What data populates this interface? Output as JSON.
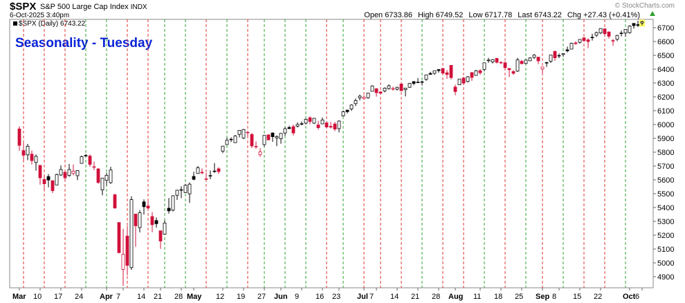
{
  "chart_data": {
    "type": "candlestick",
    "symbol": "$SPX",
    "name": "S&P 500 Large Cap Index",
    "exchange": "INDX",
    "timestamp": "6-Oct-2025 3:40pm",
    "copyright": "© StockCharts.com",
    "stats": [
      {
        "label": "Open",
        "value": 6733.86
      },
      {
        "label": "High",
        "value": 6749.52
      },
      {
        "label": "Low",
        "value": 6717.78
      },
      {
        "label": "Last",
        "value": 6743.22
      },
      {
        "label": "Chg",
        "value": "+27.43 (+0.41%)"
      }
    ],
    "legend": "$SPX (Daily) 6743.22",
    "annotation": "Seasonality - Tuesday",
    "categories": [
      "Mar",
      null,
      null,
      null,
      null,
      "10",
      null,
      null,
      null,
      null,
      "17",
      null,
      null,
      null,
      null,
      "24",
      null,
      null,
      null,
      null,
      null,
      "Apr",
      null,
      null,
      null,
      "7",
      null,
      null,
      null,
      null,
      "14",
      null,
      null,
      null,
      "21",
      null,
      null,
      null,
      null,
      "28",
      null,
      null,
      "May",
      null,
      null,
      null,
      null,
      null,
      null,
      "12",
      null,
      null,
      null,
      null,
      "19",
      null,
      null,
      null,
      null,
      "27",
      null,
      null,
      null,
      "Jun",
      null,
      null,
      null,
      null,
      "9",
      null,
      null,
      null,
      null,
      "16",
      null,
      null,
      null,
      "23",
      null,
      null,
      null,
      null,
      null,
      "Jul",
      null,
      null,
      "7",
      null,
      null,
      null,
      null,
      "14",
      null,
      null,
      null,
      null,
      "21",
      null,
      null,
      null,
      null,
      "28",
      null,
      null,
      null,
      "Aug",
      null,
      null,
      null,
      null,
      null,
      "11",
      null,
      null,
      null,
      null,
      "18",
      null,
      null,
      null,
      null,
      "25",
      null,
      null,
      null,
      null,
      "Sep",
      null,
      null,
      null,
      "8",
      null,
      null,
      null,
      null,
      "15",
      null,
      null,
      null,
      null,
      "22",
      null,
      null,
      null,
      null,
      null,
      null,
      "Oct",
      null,
      null,
      "6"
    ],
    "open": [
      5968,
      5812,
      5781,
      5786,
      5726,
      5705,
      5603,
      5624,
      5594,
      5563,
      5635,
      5655,
      5632,
      5646,
      5630,
      5719,
      5775,
      5772,
      5695,
      5679,
      5527,
      5597,
      5580,
      5492,
      5292,
      4953,
      5194,
      4966,
      5353,
      5255,
      5441,
      5411,
      5335,
      5306,
      5232,
      5207,
      5395,
      5381,
      5489,
      5529,
      5508,
      5499,
      5625,
      5646,
      5655,
      5606,
      5631,
      5663,
      5680,
      5807,
      5855,
      5894,
      5869,
      5929,
      5903,
      5944,
      5928,
      5842,
      5781,
      5855,
      5925,
      5939,
      5903,
      5897,
      5939,
      5978,
      5985,
      5988,
      6005,
      6010,
      6049,
      6010,
      5997,
      6005,
      6012,
      5987,
      6004,
      5970,
      6062,
      6104,
      6113,
      6151,
      6193,
      6187,
      6193,
      6240,
      6259,
      6235,
      6243,
      6260,
      6255,
      6255,
      6293,
      6252,
      6269,
      6310,
      6305,
      6306,
      6326,
      6369,
      6370,
      6397,
      6405,
      6374,
      6428,
      6271,
      6287,
      6336,
      6311,
      6375,
      6355,
      6389,
      6398,
      6461,
      6452,
      6478,
      6445,
      6446,
      6405,
      6383,
      6386,
      6457,
      6441,
      6461,
      6485,
      6487,
      6401,
      6447,
      6457,
      6529,
      6499,
      6506,
      6540,
      6545,
      6590,
      6594,
      6627,
      6612,
      6631,
      6645,
      6662,
      6692,
      6669,
      6607,
      6616,
      6661,
      6661,
      6664,
      6731,
      6722,
      6733.86
    ],
    "high": [
      5986,
      5865,
      5860,
      5812,
      5783,
      5705,
      5636,
      5642,
      5597,
      5645,
      5704,
      5655,
      5715,
      5711,
      5670,
      5775,
      5787,
      5783,
      5732,
      5685,
      5612,
      5651,
      5695,
      5500,
      5292,
      5246,
      5267,
      5481,
      5353,
      5381,
      5459,
      5450,
      5367,
      5328,
      5232,
      5309,
      5469,
      5489,
      5528,
      5553,
      5571,
      5581,
      5659,
      5700,
      5683,
      5650,
      5668,
      5721,
      5691,
      5845,
      5906,
      5907,
      5924,
      5958,
      5968,
      5953,
      5939,
      5878,
      5829,
      5922,
      5930,
      5943,
      5922,
      5938,
      5982,
      5991,
      5999,
      6016,
      6022,
      6043,
      6059,
      6046,
      6026,
      6051,
      6024,
      6018,
      6018,
      6030,
      6101,
      6108,
      6146,
      6188,
      6216,
      6211,
      6227,
      6284,
      6262,
      6243,
      6269,
      6290,
      6274,
      6273,
      6302,
      6266,
      6300,
      6315,
      6336,
      6316,
      6360,
      6381,
      6389,
      6401,
      6409,
      6394,
      6428,
      6288,
      6330,
      6345,
      6350,
      6380,
      6395,
      6400,
      6446,
      6481,
      6473,
      6481,
      6458,
      6456,
      6408,
      6393,
      6482,
      6467,
      6468,
      6487,
      6509,
      6488,
      6416,
      6453,
      6502,
      6533,
      6513,
      6513,
      6563,
      6592,
      6601,
      6616,
      6627,
      6624,
      6656,
      6672,
      6695,
      6693,
      6673,
      6619,
      6649,
      6679,
      6689,
      6718,
      6731,
      6750,
      6749.52
    ],
    "low": [
      5810,
      5732,
      5742,
      5711,
      5666,
      5565,
      5528,
      5546,
      5505,
      5563,
      5628,
      5597,
      5622,
      5633,
      5598,
      5719,
      5764,
      5695,
      5670,
      5572,
      5488,
      5558,
      5571,
      5390,
      5069,
      4835,
      4911,
      4950,
      5116,
      5220,
      5349,
      5386,
      5221,
      5255,
      5101,
      5207,
      5356,
      5371,
      5455,
      5468,
      5505,
      5434,
      5597,
      5645,
      5641,
      5600,
      5605,
      5650,
      5644,
      5794,
      5853,
      5874,
      5867,
      5907,
      5895,
      5909,
      5830,
      5825,
      5767,
      5840,
      5886,
      5875,
      5844,
      5861,
      5919,
      5966,
      5921,
      5979,
      5994,
      6000,
      6003,
      6004,
      5963,
      6004,
      5975,
      5971,
      5952,
      5943,
      6058,
      6080,
      6099,
      6133,
      6174,
      6177,
      6187,
      6240,
      6202,
      6216,
      6233,
      6251,
      6245,
      6246,
      6242,
      6203,
      6265,
      6285,
      6304,
      6282,
      6316,
      6360,
      6360,
      6375,
      6365,
      6330,
      6326,
      6212,
      6285,
      6289,
      6303,
      6316,
      6353,
      6360,
      6384,
      6446,
      6441,
      6441,
      6437,
      6396,
      6343,
      6360,
      6380,
      6438,
      6435,
      6458,
      6474,
      6437,
      6360,
      6417,
      6445,
      6460,
      6480,
      6490,
      6522,
      6544,
      6577,
      6585,
      6596,
      6552,
      6607,
      6633,
      6653,
      6634,
      6622,
      6569,
      6603,
      6637,
      6634,
      6656,
      6693,
      6705,
      6717.78
    ],
    "close": [
      5849,
      5778,
      5843,
      5739,
      5770,
      5615,
      5572,
      5599,
      5522,
      5639,
      5675,
      5615,
      5675,
      5663,
      5668,
      5768,
      5777,
      5712,
      5693,
      5581,
      5612,
      5633,
      5671,
      5397,
      5074,
      5062,
      4982,
      5457,
      5268,
      5363,
      5406,
      5396,
      5276,
      5283,
      5158,
      5288,
      5376,
      5485,
      5525,
      5529,
      5561,
      5569,
      5604,
      5687,
      5650,
      5607,
      5631,
      5664,
      5660,
      5844,
      5886,
      5893,
      5917,
      5958,
      5964,
      5940,
      5845,
      5842,
      5802,
      5922,
      5889,
      5912,
      5912,
      5936,
      5970,
      5971,
      5939,
      6000,
      6006,
      6038,
      6022,
      6045,
      5977,
      6033,
      5982,
      5981,
      5967,
      6025,
      6092,
      6093,
      6141,
      6173,
      6205,
      6198,
      6227,
      6279,
      6230,
      6226,
      6263,
      6280,
      6260,
      6269,
      6244,
      6263,
      6297,
      6297,
      6306,
      6309,
      6359,
      6363,
      6389,
      6390,
      6371,
      6362,
      6339,
      6238,
      6329,
      6299,
      6345,
      6340,
      6389,
      6374,
      6446,
      6466,
      6469,
      6450,
      6449,
      6411,
      6396,
      6370,
      6467,
      6439,
      6466,
      6481,
      6502,
      6460,
      6416,
      6448,
      6502,
      6482,
      6495,
      6512,
      6532,
      6587,
      6584,
      6615,
      6606,
      6600,
      6631,
      6664,
      6694,
      6656,
      6638,
      6605,
      6644,
      6661,
      6688,
      6711,
      6715,
      6716,
      6743.22
    ],
    "seasonality_marks": [
      1,
      6,
      11,
      16,
      21,
      26,
      31,
      35,
      40,
      45,
      50,
      55,
      59,
      64,
      69,
      74,
      78,
      83,
      87,
      92,
      97,
      102,
      107,
      112,
      117,
      122,
      126,
      131,
      136,
      141,
      146
    ],
    "up_color": "#000000",
    "down_color": "#d0103a",
    "mark_up_color": "#2ca02c",
    "mark_down_color": "#e0302a",
    "annotation_color": "#0a24d6",
    "ylim": [
      4820,
      6760
    ],
    "yticks": [
      4900,
      5000,
      5100,
      5200,
      5300,
      5400,
      5500,
      5600,
      5700,
      5800,
      5900,
      6000,
      6100,
      6200,
      6300,
      6400,
      6500,
      6600,
      6700
    ],
    "grid": false
  }
}
